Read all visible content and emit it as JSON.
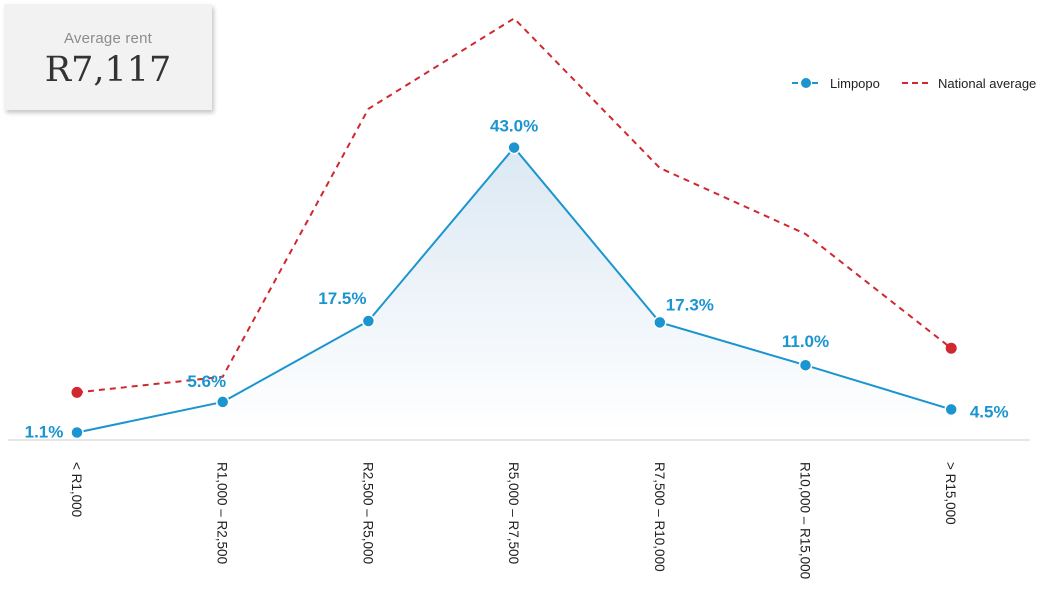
{
  "stat": {
    "label": "Average rent",
    "value": "R7,117"
  },
  "colors": {
    "limpopo": "#1b95cf",
    "national": "#d0282e",
    "axis": "#dddddd",
    "area_top": "#dbe8f3",
    "area_bottom": "#ffffff"
  },
  "chart_data": {
    "type": "line",
    "categories": [
      "< R1,000",
      "R1,000 – R2,500",
      "R2,500 – R5,000",
      "R5,000 – R7,500",
      "R7,500 – R10,000",
      "R10,000 – R15,000",
      "> R15,000"
    ],
    "series": [
      {
        "name": "Limpopo",
        "values": [
          1.1,
          5.6,
          17.5,
          43.0,
          17.3,
          11.0,
          4.5
        ],
        "labels": [
          "1.1%",
          "5.6%",
          "17.5%",
          "43.0%",
          "17.3%",
          "11.0%",
          "4.5%"
        ],
        "style": "solid",
        "area": true
      },
      {
        "name": "National average",
        "values": [
          7.0,
          9.3,
          48.7,
          62.0,
          40.0,
          30.3,
          13.5
        ],
        "style": "dashed"
      }
    ],
    "ylim": [
      0,
      70
    ],
    "legend": "top-right",
    "grid": false
  }
}
